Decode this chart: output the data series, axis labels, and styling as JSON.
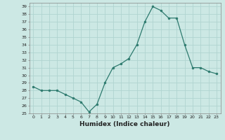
{
  "x": [
    0,
    1,
    2,
    3,
    4,
    5,
    6,
    7,
    8,
    9,
    10,
    11,
    12,
    13,
    14,
    15,
    16,
    17,
    18,
    19,
    20,
    21,
    22,
    23
  ],
  "y": [
    28.5,
    28,
    28,
    28,
    27.5,
    27,
    26.5,
    25.2,
    26.2,
    29,
    31,
    31.5,
    32.2,
    34,
    37,
    39,
    38.5,
    37.5,
    37.5,
    34,
    31,
    31,
    30.5,
    30.2
  ],
  "xlabel": "Humidex (Indice chaleur)",
  "ylim": [
    25,
    39.5
  ],
  "xlim": [
    -0.5,
    23.5
  ],
  "yticks": [
    25,
    26,
    27,
    28,
    29,
    30,
    31,
    32,
    33,
    34,
    35,
    36,
    37,
    38,
    39
  ],
  "xticks": [
    0,
    1,
    2,
    3,
    4,
    5,
    6,
    7,
    8,
    9,
    10,
    11,
    12,
    13,
    14,
    15,
    16,
    17,
    18,
    19,
    20,
    21,
    22,
    23
  ],
  "line_color": "#2d7a6e",
  "bg_color": "#cce8e4",
  "grid_color": "#b0d4d0",
  "font_color": "#222222"
}
